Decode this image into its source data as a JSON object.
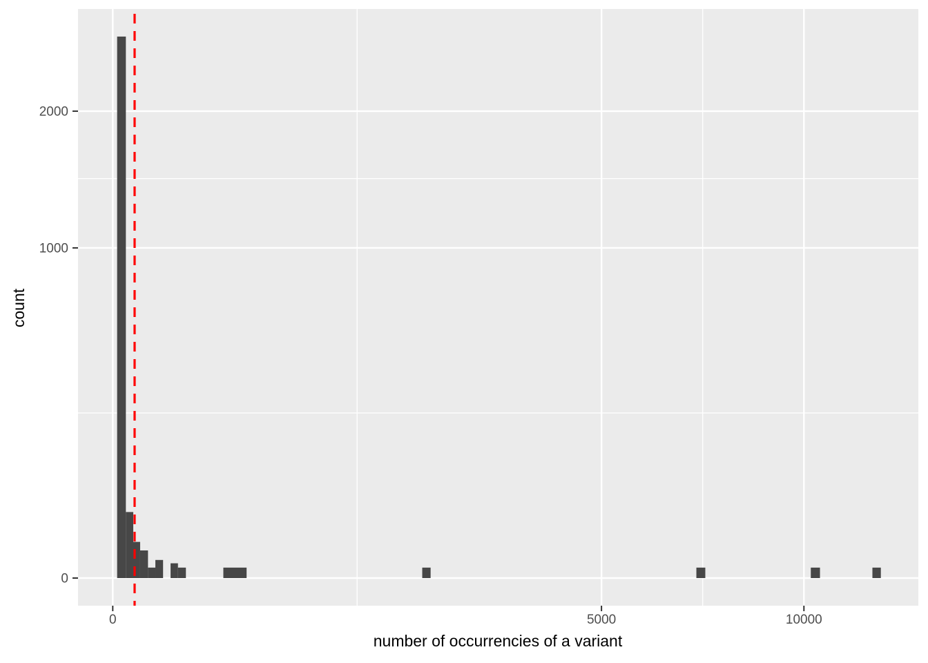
{
  "figure": {
    "background": "#FFFFFF",
    "panel_background": "#EBEBEB",
    "grid_color": "#FFFFFF",
    "bar_color": "#474747",
    "vline_color": "#FF0000",
    "tick_label_color": "#4D4D4D",
    "tick_mark_color": "#333333",
    "axis_title_color": "#000000"
  },
  "chart_data": {
    "type": "bar",
    "subtype": "histogram",
    "title": "",
    "xlabel": "number of occurrencies of a variant",
    "ylabel": "count",
    "x_scale": "sqrt",
    "y_scale": "sqrt",
    "x_range": [
      0,
      13600
    ],
    "y_range": [
      0,
      2950
    ],
    "grid": true,
    "legend": "none",
    "x_ticks": [
      {
        "value": 0,
        "label": "0"
      },
      {
        "value": 5000,
        "label": "5000"
      },
      {
        "value": 10000,
        "label": "10000"
      }
    ],
    "y_ticks": [
      {
        "value": 0,
        "label": "0"
      },
      {
        "value": 1000,
        "label": "1000"
      },
      {
        "value": 2000,
        "label": "2000"
      }
    ],
    "x_minor_ticks": [
      1250,
      7286
    ],
    "y_minor_ticks": [
      250,
      1464
    ],
    "vline": {
      "value": 10,
      "style": "dashed",
      "color": "#FF0000"
    },
    "bars": [
      {
        "from": 0.4,
        "to": 3.6,
        "count": 2690
      },
      {
        "from": 3.6,
        "to": 8.8,
        "count": 40
      },
      {
        "from": 8.8,
        "to": 15.7,
        "count": 12
      },
      {
        "from": 15.7,
        "to": 26,
        "count": 7
      },
      {
        "from": 26,
        "to": 38,
        "count": 1
      },
      {
        "from": 38,
        "to": 53,
        "count": 3
      },
      {
        "from": 70,
        "to": 89,
        "count": 2
      },
      {
        "from": 89,
        "to": 112,
        "count": 1
      },
      {
        "from": 256,
        "to": 375,
        "count": 1
      },
      {
        "from": 2005,
        "to": 2115,
        "count": 1
      },
      {
        "from": 7130,
        "to": 7350,
        "count": 1
      },
      {
        "from": 10200,
        "to": 10470,
        "count": 1
      },
      {
        "from": 12080,
        "to": 12350,
        "count": 1
      }
    ]
  }
}
